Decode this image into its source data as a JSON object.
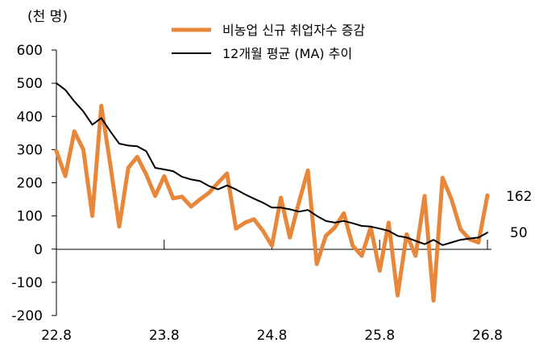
{
  "chart_data": {
    "type": "line",
    "unit_label": "(천 명)",
    "ylim": [
      -200,
      600
    ],
    "yticks": [
      600,
      500,
      400,
      300,
      200,
      100,
      0,
      -100,
      -200
    ],
    "xlabels": [
      "22.8",
      "23.8",
      "24.8",
      "25.8",
      "26.8"
    ],
    "grid": false,
    "legend_position": "top",
    "series": [
      {
        "name": "비농업 신규 취업자수 증감",
        "color": "#E8873A",
        "values": [
          295,
          220,
          355,
          300,
          100,
          432,
          255,
          68,
          245,
          278,
          225,
          160,
          220,
          153,
          158,
          128,
          150,
          170,
          200,
          228,
          62,
          80,
          90,
          55,
          10,
          155,
          35,
          140,
          237,
          -45,
          40,
          65,
          108,
          10,
          -20,
          65,
          -65,
          80,
          -140,
          45,
          -20,
          160,
          -155,
          215,
          150,
          60,
          30,
          20,
          162
        ]
      },
      {
        "name": "12개월 평균 (MA) 추이",
        "color": "#000000",
        "values": [
          500,
          480,
          445,
          415,
          375,
          395,
          355,
          318,
          312,
          310,
          295,
          245,
          240,
          235,
          218,
          210,
          205,
          190,
          180,
          192,
          180,
          165,
          152,
          140,
          125,
          125,
          120,
          113,
          118,
          100,
          85,
          80,
          85,
          78,
          70,
          68,
          62,
          55,
          40,
          35,
          25,
          15,
          28,
          12,
          20,
          28,
          32,
          35,
          50
        ]
      }
    ],
    "end_labels": [
      "162",
      "50"
    ]
  }
}
